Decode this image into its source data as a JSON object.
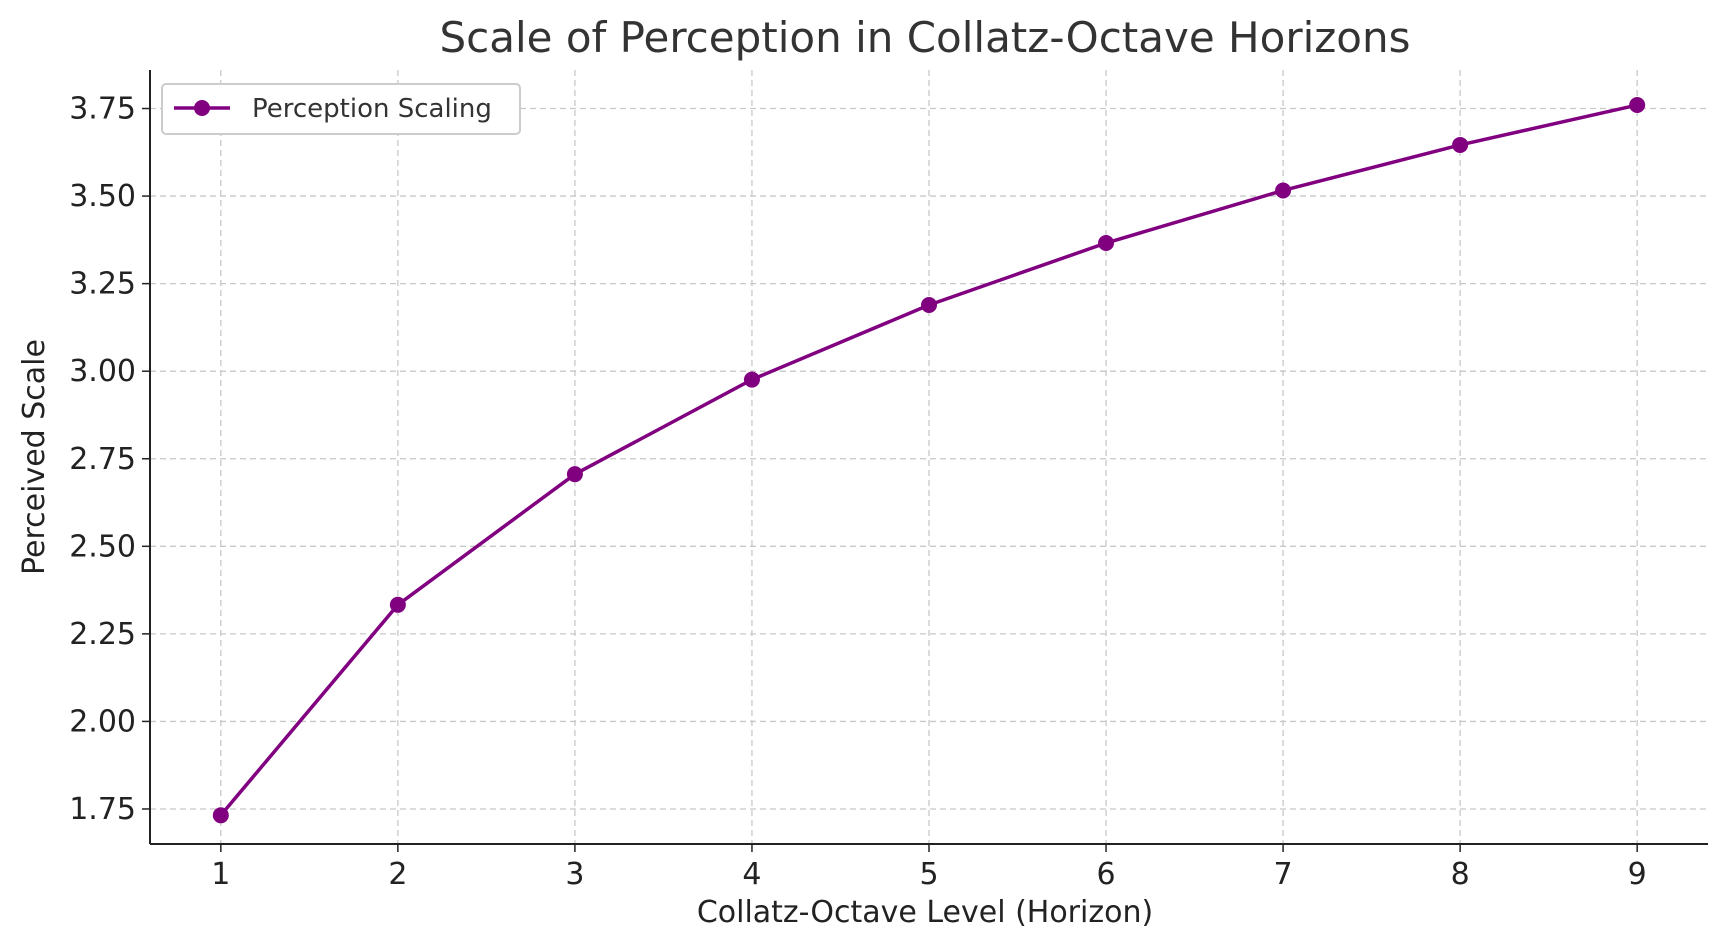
{
  "chart_data": {
    "type": "line",
    "title": "Scale of Perception in Collatz-Octave Horizons",
    "xlabel": "Collatz-Octave Level (Horizon)",
    "ylabel": "Perceived Scale",
    "x": [
      1,
      2,
      3,
      4,
      5,
      6,
      7,
      8,
      9
    ],
    "xticks": [
      "1",
      "2",
      "3",
      "4",
      "5",
      "6",
      "7",
      "8",
      "9"
    ],
    "yticks": [
      "1.75",
      "2.00",
      "2.25",
      "2.50",
      "2.75",
      "3.00",
      "3.25",
      "3.50",
      "3.75"
    ],
    "xlim": [
      0.6,
      9.4
    ],
    "ylim": [
      1.65,
      3.86
    ],
    "grid": true,
    "legend_position": "top-left",
    "series": [
      {
        "name": "Perception Scaling",
        "color": "#800080",
        "marker": "circle",
        "values": [
          1.732,
          2.333,
          2.706,
          2.976,
          3.189,
          3.366,
          3.516,
          3.646,
          3.76
        ]
      }
    ]
  }
}
